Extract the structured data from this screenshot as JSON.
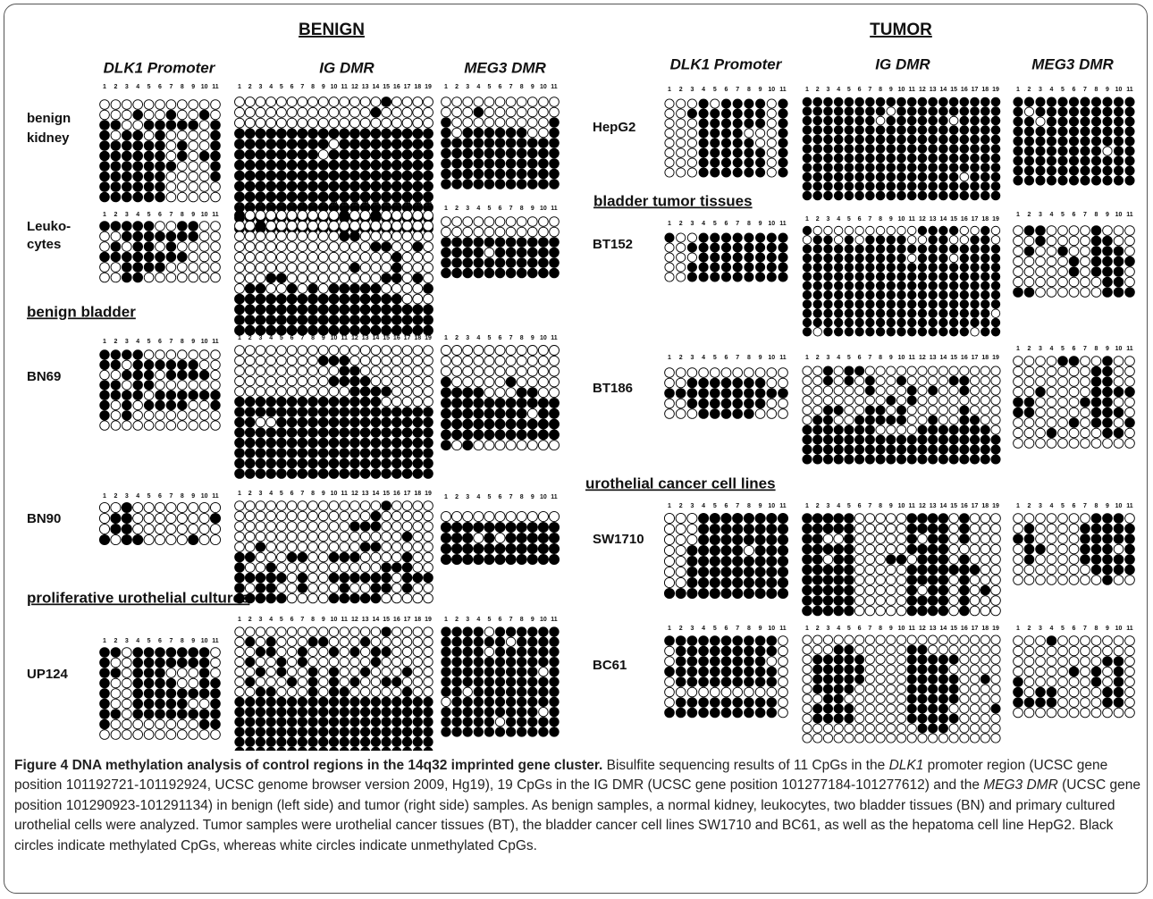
{
  "header": {
    "benign": "BENIGN",
    "tumor": "TUMOR"
  },
  "columns11": [
    1,
    2,
    3,
    4,
    5,
    6,
    7,
    8,
    9,
    10,
    11
  ],
  "columns19": [
    1,
    2,
    3,
    4,
    5,
    6,
    7,
    8,
    9,
    10,
    11,
    12,
    13,
    14,
    15,
    16,
    17,
    18,
    19
  ],
  "panels": [
    {
      "regions": [
        "DLK1 Promoter",
        "IG DMR",
        "MEG3 DMR"
      ],
      "sections": [
        "benign bladder",
        "proliferative urothelial cultures"
      ],
      "samples": [
        {
          "label": [
            "benign",
            "kidney"
          ],
          "dlk1": [
            "00000000000",
            "00010010010",
            "11001111101",
            "10110100001",
            "11111101001",
            "11111101011",
            "11111110001",
            "11111100001",
            "11111100000",
            "11111100000"
          ],
          "ig": [
            "0000000000000010000",
            "0000000000000100000",
            "0000000000000000000",
            "1111111111111111111",
            "1111111110111111111",
            "1111111101111111111",
            "1111111111111111111",
            "1111111111111111111",
            "1111111111111111111",
            "1111111111111111111",
            "1111111111111111111",
            "1111111111111111111",
            "1111111111111111111"
          ],
          "meg3": [
            "00000000000",
            "00010000000",
            "10000000001",
            "10111111001",
            "11111111111",
            "11111111111",
            "11111111111",
            "11111111111",
            "11111111111"
          ]
        },
        {
          "label": [
            "Leuko-",
            "cytes"
          ],
          "dlk1": [
            "11111001100",
            "00111111100",
            "01011010000",
            "11111111000",
            "00111100000",
            "00110000000"
          ],
          "ig": [
            "1000000000100100000",
            "0010000000000000000",
            "0000000000110000000",
            "0000000000000110010",
            "0000000000000001000",
            "0000000000010001000",
            "0001100000000011010",
            "0110010101111100001",
            "1111111111111111000",
            "1111111111111111111",
            "1111111111111111111",
            "1111111111111111111"
          ],
          "meg3": [
            "00000000000",
            "00000000000",
            "11111111111",
            "11110111111",
            "11111111111",
            "11111111111"
          ]
        },
        {
          "label": [
            "BN69"
          ],
          "dlk1": [
            "11110000000",
            "11011111100",
            "00111011110",
            "11011000000",
            "11110111111",
            "10101111001",
            "10100000000",
            "00000000000"
          ],
          "ig": [
            "0000000000000000000",
            "0000000011100000000",
            "0000000000110000000",
            "0000000001111000000",
            "0000000000011110000",
            "1111111111111100000",
            "1111111111111111111",
            "1100111111111111111",
            "1111111111111111111",
            "1111111111111111111",
            "1111111111111111111",
            "1111111111111111111",
            "1111111111111111111"
          ],
          "meg3": [
            "00000000000",
            "00000000000",
            "00000000000",
            "10000010000",
            "11110001100",
            "11111111111",
            "11111111011",
            "11111111111",
            "11111111111",
            "10100000000"
          ]
        },
        {
          "label": [
            "BN90"
          ],
          "dlk1": [
            "00100000000",
            "01100000001",
            "01100000000",
            "10110000100"
          ],
          "ig": [
            "0000000000000010000",
            "0000000000000100000",
            "0000000000011100000",
            "0000000000000000100",
            "0010000000001100000",
            "1100011001110000100",
            "1001000000000011100",
            "1111101001111110111",
            "1011001000100110100",
            "1111100001111100000"
          ],
          "meg3": [
            "00000000000",
            "11111111111",
            "11101011111",
            "11111111111",
            "11111111111"
          ]
        },
        {
          "label": [
            "UP124"
          ],
          "dlk1": [
            "11011111110",
            "10011111110",
            "11011100010",
            "10011110011",
            "10011111111",
            "10011111001",
            "11011111111",
            "10000000011",
            "00000000000"
          ],
          "ig": [
            "0000000000000010000",
            "0101000110001000000",
            "0011001001010110000",
            "0100101000000100000",
            "0010100101001000100",
            "0100010101010011000",
            "0011000101100000100",
            "1111111111111111111",
            "1111111111111111111",
            "1111111111111111111",
            "1111111111111111111",
            "1111111111111111111",
            "1111111111111111111"
          ],
          "meg3": [
            "11110111111",
            "11111101111",
            "11110111111",
            "11111111111",
            "11111111101",
            "11111111111",
            "11011111111",
            "01111111111",
            "11111111101",
            "11111011111",
            "11111111111"
          ]
        }
      ]
    },
    {
      "regions": [
        "DLK1 Promoter",
        "IG DMR",
        "MEG3 DMR"
      ],
      "sections": [
        "bladder tumor tissues",
        "urothelial cancer cell lines"
      ],
      "samples": [
        {
          "label": [
            "HepG2"
          ],
          "dlk1": [
            "00010111101",
            "00111111101",
            "00011111101",
            "00011110001",
            "00011111001",
            "00011111101",
            "00011111101",
            "00011111101"
          ],
          "ig": [
            "1111111111111111111",
            "1111111101111111111",
            "1111111011111101111",
            "1111111111111111111",
            "1111111111111111111",
            "1111111111111111111",
            "1111111111111111111",
            "1111111111111111111",
            "1111111111111110111",
            "1111111111111111111",
            "1111111111111111111"
          ],
          "meg3": [
            "11111111111",
            "10111111111",
            "11011111111",
            "11111111111",
            "11111111111",
            "11111111011",
            "11111111111",
            "11111111111",
            "11111111111"
          ]
        },
        {
          "label": [
            "BT152"
          ],
          "dlk1": [
            "10011111111",
            "00111111111",
            "00011111111",
            "00111111111",
            "00111111111"
          ],
          "ig": [
            "1000000000011110010",
            "0110101111001100110",
            "1111111111111111111",
            "1111111111011101111",
            "1111111111111111111",
            "1111111111111111111",
            "1111111111111111111",
            "1111111111111111111",
            "1111111111111111111",
            "1111111111111111110",
            "1111111111111111111",
            "1011111111111111011"
          ],
          "meg3": [
            "01100001000",
            "00100001100",
            "01001001110",
            "00000101111",
            "00000101110",
            "00000000110",
            "11000000111"
          ]
        },
        {
          "label": [
            "BT186"
          ],
          "dlk1": [
            "00000000000",
            "00111111100",
            "11111111111",
            "00111111100",
            "00011111000"
          ],
          "ig": [
            "0010110000000000000",
            "0010101001000011000",
            "0000001000101001000",
            "0000000010100000000",
            "0011001101000001000",
            "0110011111001001100",
            "1111111000011111110",
            "1111111111111111111",
            "1111111111111111111",
            "1111111111111111111"
          ],
          "meg3": [
            "00001100100",
            "00000001100",
            "00000001100",
            "00100001111",
            "11000011100",
            "11000001110",
            "00000101101",
            "00010000110",
            "00000000000"
          ]
        },
        {
          "label": [
            "SW1710"
          ],
          "dlk1": [
            "00011111111",
            "00011111111",
            "00011111111",
            "00111110111",
            "00111111111",
            "00111111111",
            "00111111111",
            "11111111111"
          ],
          "ig": [
            "1111100000111101000",
            "1111100000111101000",
            "1100100000101101000",
            "1111100000111100000",
            "1101100011011101000",
            "1111100000111111100",
            "1111100000111101000",
            "1111100000101101010",
            "1111100000111101000",
            "1111100000111101000"
          ],
          "meg3": [
            "00000001110",
            "01000011111",
            "11000011111",
            "01100011101",
            "01000011111",
            "00000001111",
            "00000000100"
          ]
        },
        {
          "label": [
            "BC61"
          ],
          "dlk1": [
            "11111111110",
            "01111111110",
            "01111111100",
            "11111111110",
            "01111111110",
            "00000000000",
            "01111111110",
            "11111111110"
          ],
          "ig": [
            "0000000000000000000",
            "0001100000110000000",
            "0111110000111110000",
            "0111110000111100000",
            "0111110000111110010",
            "0111100000111110000",
            "0011000000111110000",
            "0111100000111100001",
            "0111100000111110000",
            "0000000000011100000",
            "0000000000000000000"
          ],
          "meg3": [
            "00010000000",
            "00000000000",
            "00000000110",
            "00000101010",
            "10000001010",
            "10110000110",
            "11110000110",
            "00000000000"
          ]
        }
      ]
    }
  ],
  "caption": {
    "title": "Figure 4 DNA methylation analysis of control regions in the 14q32 imprinted gene cluster.",
    "text1": "Bisulfite sequencing results of 11 CpGs in the",
    "italic1": "DLK1",
    "text2": "promoter region (UCSC gene position 101192721-101192924, UCSC genome browser version 2009, Hg19), 19 CpGs in the IG DMR (UCSC gene position 101277184-101277612) and the",
    "italic2": "MEG3 DMR",
    "text3": "(UCSC gene position 101290923-101291134) in benign (left side) and tumor (right side) samples. As benign samples, a normal kidney, leukocytes, two bladder tissues (BN) and primary cultured urothelial cells were analyzed. Tumor samples were urothelial cancer tissues (BT), the bladder cancer cell lines SW1710 and BC61, as well as the hepatoma cell line HepG2. Black circles indicate methylated CpGs, whereas white circles indicate unmethylated CpGs."
  }
}
